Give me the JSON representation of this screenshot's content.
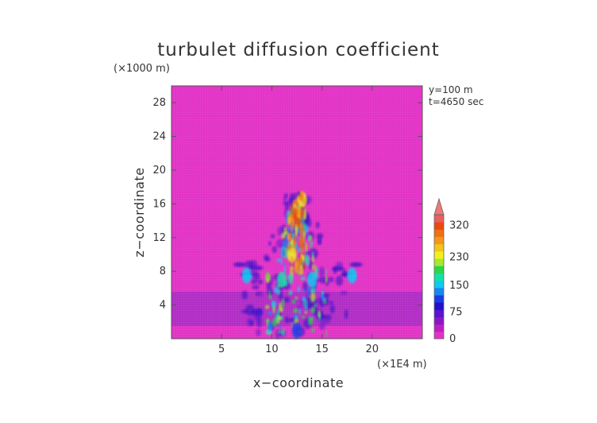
{
  "chart_data": {
    "type": "heatmap",
    "title": "turbulet diffusion coefficient",
    "xlabel": "x−coordinate",
    "ylabel": "z−coordinate",
    "x_unit": "(×1E4 m)",
    "y_unit": "(×1000 m)",
    "annotations": [
      "y=100 m",
      "t=4650 sec"
    ],
    "xlim": [
      0,
      25
    ],
    "ylim": [
      0,
      30
    ],
    "x_ticks": [
      5,
      10,
      15,
      20
    ],
    "y_ticks": [
      4,
      8,
      12,
      16,
      20,
      24,
      28
    ],
    "colorbar": {
      "range": [
        0,
        350
      ],
      "tick_values": [
        0,
        75,
        150,
        230,
        320
      ],
      "tick_labels": [
        "0",
        "75",
        "150",
        "230",
        "320"
      ],
      "colors": [
        "#e233c6",
        "#c01ec4",
        "#8a16c4",
        "#5a13cf",
        "#2410c8",
        "#1a3ce6",
        "#1888f0",
        "#10c8f0",
        "#14e0a8",
        "#28d848",
        "#a6e82c",
        "#f0f020",
        "#f2c41c",
        "#f29818",
        "#f27012",
        "#e84a10",
        "#e86060"
      ],
      "extend": "max"
    },
    "background_value": 0,
    "surface_layer": {
      "z_range": [
        1.5,
        5.5
      ],
      "value": 15
    },
    "plume_features": [
      {
        "x": 12.5,
        "z": 14.0,
        "value": 320
      },
      {
        "x": 13.0,
        "z": 16.5,
        "value": 250
      },
      {
        "x": 12.0,
        "z": 10.0,
        "value": 230
      },
      {
        "x": 11.0,
        "z": 7.0,
        "value": 180
      },
      {
        "x": 14.0,
        "z": 7.0,
        "value": 160
      },
      {
        "x": 7.5,
        "z": 7.5,
        "value": 150
      },
      {
        "x": 18.0,
        "z": 7.5,
        "value": 150
      },
      {
        "x": 12.5,
        "z": 1.0,
        "value": 120
      }
    ]
  }
}
